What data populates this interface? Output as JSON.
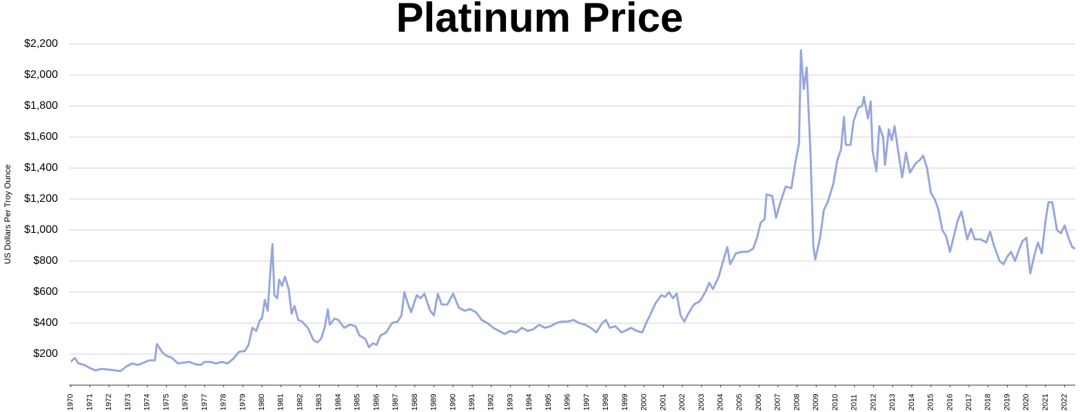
{
  "chart_data": {
    "type": "line",
    "title": "Platinum Price",
    "y_label": "US Dollars Per Troy Ounce",
    "xlim": [
      1969.9,
      2022.55
    ],
    "xticks": [
      1970,
      1971,
      1972,
      1973,
      1974,
      1975,
      1976,
      1977,
      1978,
      1979,
      1980,
      1981,
      1982,
      1983,
      1984,
      1985,
      1986,
      1987,
      1988,
      1989,
      1990,
      1991,
      1992,
      1993,
      1994,
      1995,
      1996,
      1997,
      1998,
      1999,
      2000,
      2001,
      2002,
      2003,
      2004,
      2005,
      2006,
      2007,
      2008,
      2009,
      2010,
      2011,
      2012,
      2013,
      2014,
      2015,
      2016,
      2017,
      2018,
      2019,
      2020,
      2021,
      2022
    ],
    "ylim": [
      0,
      2200
    ],
    "yticks": [
      {
        "value": 200,
        "label": "$200"
      },
      {
        "value": 400,
        "label": "$400"
      },
      {
        "value": 600,
        "label": "$600"
      },
      {
        "value": 800,
        "label": "$800"
      },
      {
        "value": 1000,
        "label": "$1,000"
      },
      {
        "value": 1200,
        "label": "$1,200"
      },
      {
        "value": 1400,
        "label": "$1,400"
      },
      {
        "value": 1600,
        "label": "$1,600"
      },
      {
        "value": 1800,
        "label": "$1,800"
      },
      {
        "value": 2000,
        "label": "$2,000"
      },
      {
        "value": 2200,
        "label": "$2,200"
      }
    ],
    "grid": true,
    "x": [
      1970.0,
      1970.2,
      1970.4,
      1970.7,
      1971.0,
      1971.3,
      1971.6,
      1972.0,
      1972.3,
      1972.6,
      1972.9,
      1973.2,
      1973.5,
      1973.9,
      1974.1,
      1974.4,
      1974.5,
      1974.8,
      1975.0,
      1975.3,
      1975.6,
      1975.9,
      1976.2,
      1976.5,
      1976.8,
      1977.0,
      1977.3,
      1977.6,
      1977.9,
      1978.2,
      1978.5,
      1978.8,
      1979.1,
      1979.3,
      1979.5,
      1979.7,
      1979.9,
      1980.0,
      1980.15,
      1980.3,
      1980.45,
      1980.55,
      1980.65,
      1980.8,
      1980.9,
      1981.05,
      1981.2,
      1981.4,
      1981.55,
      1981.7,
      1981.9,
      1982.1,
      1982.4,
      1982.7,
      1982.9,
      1983.1,
      1983.3,
      1983.45,
      1983.55,
      1983.8,
      1984.0,
      1984.3,
      1984.6,
      1984.9,
      1985.1,
      1985.4,
      1985.6,
      1985.8,
      1986.0,
      1986.2,
      1986.5,
      1986.8,
      1987.1,
      1987.3,
      1987.45,
      1987.6,
      1987.8,
      1988.1,
      1988.3,
      1988.5,
      1988.8,
      1989.0,
      1989.2,
      1989.4,
      1989.7,
      1990.0,
      1990.3,
      1990.6,
      1990.9,
      1991.2,
      1991.5,
      1991.8,
      1992.1,
      1992.4,
      1992.7,
      1993.0,
      1993.3,
      1993.6,
      1993.9,
      1994.2,
      1994.5,
      1994.8,
      1995.1,
      1995.4,
      1995.7,
      1996.0,
      1996.3,
      1996.6,
      1996.9,
      1997.2,
      1997.5,
      1997.8,
      1998.0,
      1998.2,
      1998.5,
      1998.8,
      1999.0,
      1999.3,
      1999.6,
      1999.9,
      2000.1,
      2000.3,
      2000.6,
      2000.9,
      2001.1,
      2001.3,
      2001.5,
      2001.7,
      2001.9,
      2002.1,
      2002.3,
      2002.6,
      2002.9,
      2003.2,
      2003.4,
      2003.6,
      2003.9,
      2004.2,
      2004.35,
      2004.5,
      2004.8,
      2005.1,
      2005.4,
      2005.7,
      2005.9,
      2006.1,
      2006.3,
      2006.4,
      2006.7,
      2006.9,
      2007.1,
      2007.4,
      2007.7,
      2007.9,
      2008.1,
      2008.2,
      2008.35,
      2008.5,
      2008.7,
      2008.85,
      2008.95,
      2009.2,
      2009.4,
      2009.6,
      2009.9,
      2010.1,
      2010.3,
      2010.45,
      2010.55,
      2010.8,
      2010.95,
      2011.2,
      2011.4,
      2011.5,
      2011.7,
      2011.85,
      2011.95,
      2012.15,
      2012.3,
      2012.5,
      2012.6,
      2012.8,
      2012.95,
      2013.1,
      2013.3,
      2013.5,
      2013.7,
      2013.9,
      2014.2,
      2014.4,
      2014.6,
      2014.8,
      2015.0,
      2015.2,
      2015.4,
      2015.6,
      2015.8,
      2016.0,
      2016.2,
      2016.4,
      2016.6,
      2016.9,
      2017.1,
      2017.3,
      2017.6,
      2017.9,
      2018.1,
      2018.3,
      2018.6,
      2018.8,
      2019.0,
      2019.2,
      2019.4,
      2019.6,
      2019.8,
      2020.0,
      2020.2,
      2020.4,
      2020.6,
      2020.8,
      2021.0,
      2021.15,
      2021.35,
      2021.6,
      2021.8,
      2022.0,
      2022.2,
      2022.4,
      2022.55
    ],
    "series": [
      {
        "name": "Platinum",
        "color": "#97a6dc",
        "values": [
          150,
          175,
          140,
          130,
          110,
          95,
          105,
          100,
          95,
          90,
          120,
          140,
          130,
          150,
          160,
          160,
          265,
          210,
          190,
          175,
          140,
          145,
          150,
          135,
          130,
          150,
          150,
          140,
          150,
          140,
          170,
          215,
          220,
          260,
          370,
          350,
          420,
          430,
          550,
          480,
          750,
          910,
          580,
          560,
          680,
          640,
          700,
          620,
          460,
          510,
          420,
          410,
          370,
          290,
          275,
          300,
          380,
          490,
          390,
          430,
          420,
          370,
          390,
          380,
          320,
          300,
          245,
          270,
          260,
          320,
          340,
          400,
          410,
          450,
          600,
          540,
          470,
          580,
          560,
          590,
          480,
          450,
          590,
          520,
          520,
          590,
          500,
          480,
          490,
          470,
          420,
          400,
          370,
          350,
          330,
          350,
          340,
          370,
          350,
          360,
          390,
          370,
          380,
          400,
          410,
          410,
          420,
          400,
          390,
          370,
          340,
          400,
          420,
          370,
          380,
          340,
          350,
          370,
          350,
          340,
          400,
          450,
          530,
          580,
          570,
          600,
          560,
          590,
          450,
          410,
          460,
          520,
          540,
          600,
          660,
          620,
          700,
          830,
          890,
          780,
          850,
          860,
          860,
          880,
          950,
          1050,
          1070,
          1230,
          1220,
          1080,
          1170,
          1280,
          1270,
          1430,
          1560,
          2160,
          1910,
          2050,
          1500,
          900,
          810,
          950,
          1130,
          1180,
          1300,
          1450,
          1520,
          1730,
          1550,
          1550,
          1700,
          1790,
          1800,
          1860,
          1720,
          1830,
          1510,
          1380,
          1670,
          1600,
          1420,
          1650,
          1580,
          1670,
          1500,
          1340,
          1500,
          1370,
          1430,
          1450,
          1480,
          1400,
          1240,
          1200,
          1130,
          1000,
          960,
          860,
          960,
          1060,
          1120,
          940,
          1010,
          940,
          940,
          920,
          990,
          900,
          800,
          780,
          830,
          860,
          800,
          870,
          930,
          950,
          720,
          830,
          920,
          850,
          1060,
          1180,
          1180,
          1000,
          980,
          1030,
          950,
          890,
          880
        ]
      }
    ]
  }
}
